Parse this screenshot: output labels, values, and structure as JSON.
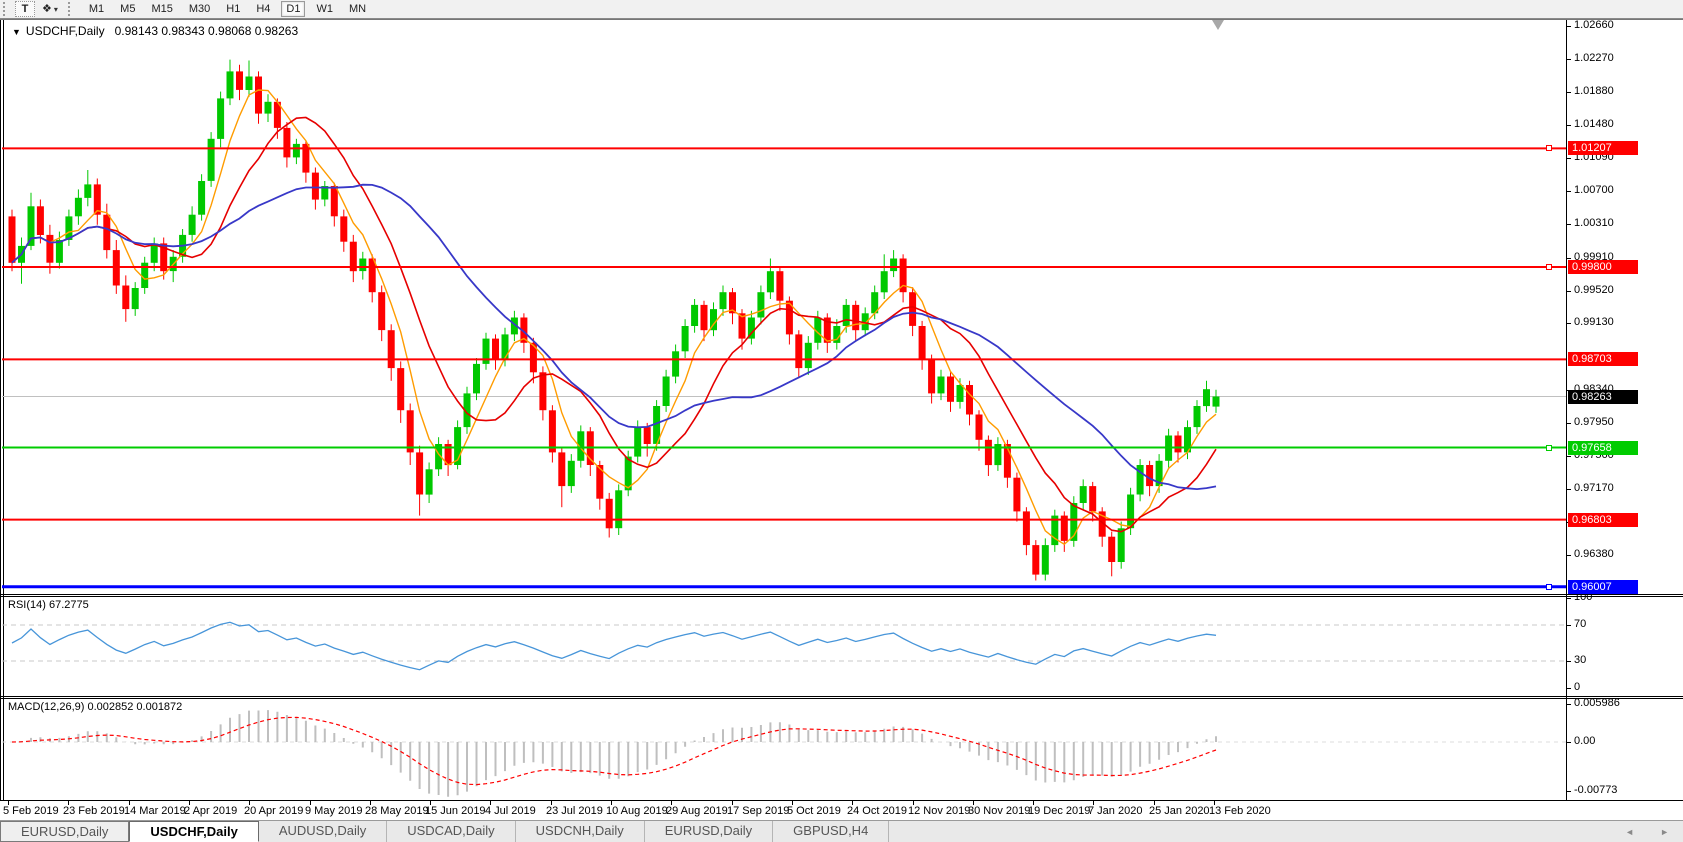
{
  "icons": {
    "dropdown_caret": "▾",
    "chart_menu": "▼",
    "shapes_tool": "❖",
    "tab_prev": "◄",
    "tab_next": "►"
  },
  "toolbar": {
    "text_tool_label": "T",
    "timeframes": [
      "M1",
      "M5",
      "M15",
      "M30",
      "H1",
      "H4",
      "D1",
      "W1",
      "MN"
    ],
    "active_timeframe": "D1"
  },
  "chart": {
    "symbol_title": "USDCHF,Daily",
    "ohlc_text": "0.98143 0.98343 0.98068 0.98263"
  },
  "chart_data": {
    "type": "candlestick",
    "symbol": "USDCHF",
    "timeframe": "Daily",
    "title_ohlc": {
      "open": "0.98143",
      "high": "0.98343",
      "low": "0.98068",
      "close": "0.98263"
    },
    "ylim": [
      0.9592,
      1.0273
    ],
    "grid": false,
    "colors": {
      "bull": "#00C800",
      "bear": "#FF0000",
      "ma_fast": "#FF9C00",
      "ma_medium": "#E60000",
      "ma_slow": "#3838C8",
      "hline_red": "#FF0000",
      "hline_green": "#00CC00",
      "hline_blue": "#0000FF",
      "bid_line": "#C0C0C0",
      "bid_box": "#000000",
      "rsi_line": "#4795D9",
      "rsi_levels": "#C8C8C8",
      "macd_hist": "#BFBFBF",
      "macd_signal": "#FF0000"
    },
    "y_ticks": [
      "1.02660",
      "1.02270",
      "1.01880",
      "1.01480",
      "1.01090",
      "1.00700",
      "1.00310",
      "0.99910",
      "0.99520",
      "0.99130",
      "0.98340",
      "0.97950",
      "0.97560",
      "0.97170",
      "0.96780",
      "0.96380"
    ],
    "x_labels": [
      "5 Feb 2019",
      "23 Feb 2019",
      "14 Mar 2019",
      "2 Apr 2019",
      "20 Apr 2019",
      "9 May 2019",
      "28 May 2019",
      "15 Jun 2019",
      "4 Jul 2019",
      "23 Jul 2019",
      "10 Aug 2019",
      "29 Aug 2019",
      "17 Sep 2019",
      "5 Oct 2019",
      "24 Oct 2019",
      "12 Nov 2019",
      "30 Nov 2019",
      "19 Dec 2019",
      "7 Jan 2020",
      "25 Jan 2020",
      "13 Feb 2020"
    ],
    "hlines": [
      {
        "price": 1.01207,
        "label": "1.01207",
        "color": "#FF0000",
        "width": 2,
        "handle": true
      },
      {
        "price": 0.998,
        "label": "0.99800",
        "color": "#FF0000",
        "width": 2,
        "handle": true
      },
      {
        "price": 0.98703,
        "label": "0.98703",
        "color": "#FF0000",
        "width": 2,
        "handle": false
      },
      {
        "price": 0.97658,
        "label": "0.97658",
        "color": "#00CC00",
        "width": 2,
        "handle": true
      },
      {
        "price": 0.96803,
        "label": "0.96803",
        "color": "#FF0000",
        "width": 2,
        "handle": false
      },
      {
        "price": 0.96007,
        "label": "0.96007",
        "color": "#0000FF",
        "width": 3,
        "handle": true
      }
    ],
    "current_price": {
      "value": 0.98263,
      "label": "0.98263"
    },
    "moving_averages": [
      {
        "name": "fast",
        "period": 5,
        "color": "#FF9C00",
        "width": 1.4
      },
      {
        "name": "medium",
        "period": 11,
        "color": "#E60000",
        "width": 1.6
      },
      {
        "name": "slow",
        "period": 25,
        "color": "#3838C8",
        "width": 1.8
      }
    ],
    "candles": [
      [
        1.004,
        1.0048,
        0.9975,
        0.9985
      ],
      [
        0.9985,
        1.0015,
        0.996,
        1.0005
      ],
      [
        1.0005,
        1.0068,
        1.0,
        1.0052
      ],
      [
        1.0052,
        1.006,
        1.0008,
        1.0018
      ],
      [
        1.0018,
        1.003,
        0.9972,
        0.9985
      ],
      [
        0.9985,
        1.0022,
        0.9978,
        1.0012
      ],
      [
        1.0012,
        1.0048,
        1.0005,
        1.004
      ],
      [
        1.004,
        1.0072,
        1.003,
        1.0062
      ],
      [
        1.0062,
        1.0095,
        1.0052,
        1.0078
      ],
      [
        1.0078,
        1.0085,
        1.003,
        1.0042
      ],
      [
        1.0042,
        1.0055,
        0.999,
        1.0
      ],
      [
        1.0,
        1.0012,
        0.9948,
        0.9958
      ],
      [
        0.9958,
        0.997,
        0.9915,
        0.993
      ],
      [
        0.993,
        0.9962,
        0.9922,
        0.9955
      ],
      [
        0.9955,
        0.9992,
        0.9948,
        0.9985
      ],
      [
        0.9985,
        1.0015,
        0.9975,
        1.0008
      ],
      [
        1.0008,
        1.0015,
        0.9965,
        0.9975
      ],
      [
        0.9975,
        1.0,
        0.9962,
        0.9992
      ],
      [
        0.9992,
        1.0025,
        0.9985,
        1.0018
      ],
      [
        1.0018,
        1.0052,
        1.001,
        1.0042
      ],
      [
        1.0042,
        1.009,
        1.0035,
        1.0082
      ],
      [
        1.0082,
        1.014,
        1.0075,
        1.0132
      ],
      [
        1.0132,
        1.0188,
        1.0122,
        1.018
      ],
      [
        1.018,
        1.0226,
        1.0172,
        1.0212
      ],
      [
        1.0212,
        1.022,
        1.0178,
        1.019
      ],
      [
        1.019,
        1.0225,
        1.0182,
        1.0206
      ],
      [
        1.0206,
        1.0212,
        1.015,
        1.0162
      ],
      [
        1.0162,
        1.0185,
        1.0152,
        1.0176
      ],
      [
        1.0176,
        1.018,
        1.0132,
        1.0145
      ],
      [
        1.0145,
        1.0152,
        1.0098,
        1.011
      ],
      [
        1.011,
        1.0132,
        1.0102,
        1.0126
      ],
      [
        1.0126,
        1.013,
        1.008,
        1.0092
      ],
      [
        1.0092,
        1.0098,
        1.0048,
        1.006
      ],
      [
        1.006,
        1.0082,
        1.0052,
        1.0076
      ],
      [
        1.0076,
        1.008,
        1.0028,
        1.004
      ],
      [
        1.004,
        1.0048,
        0.9998,
        1.001
      ],
      [
        1.001,
        1.0018,
        0.9962,
        0.9975
      ],
      [
        0.9975,
        0.9998,
        0.9965,
        0.999
      ],
      [
        0.999,
        0.9995,
        0.9938,
        0.995
      ],
      [
        0.995,
        0.9958,
        0.9892,
        0.9905
      ],
      [
        0.9905,
        0.9912,
        0.9845,
        0.986
      ],
      [
        0.986,
        0.9868,
        0.9795,
        0.981
      ],
      [
        0.981,
        0.9818,
        0.9745,
        0.976
      ],
      [
        0.976,
        0.9768,
        0.9685,
        0.971
      ],
      [
        0.971,
        0.9748,
        0.97,
        0.974
      ],
      [
        0.974,
        0.9778,
        0.9732,
        0.977
      ],
      [
        0.977,
        0.9775,
        0.9732,
        0.9745
      ],
      [
        0.9745,
        0.9798,
        0.974,
        0.979
      ],
      [
        0.979,
        0.9838,
        0.9782,
        0.983
      ],
      [
        0.983,
        0.9872,
        0.9822,
        0.9865
      ],
      [
        0.9865,
        0.9902,
        0.9858,
        0.9895
      ],
      [
        0.9895,
        0.99,
        0.9858,
        0.987
      ],
      [
        0.987,
        0.9908,
        0.9862,
        0.99
      ],
      [
        0.99,
        0.9928,
        0.9892,
        0.992
      ],
      [
        0.992,
        0.9925,
        0.9878,
        0.989
      ],
      [
        0.989,
        0.9896,
        0.9842,
        0.9855
      ],
      [
        0.9855,
        0.9862,
        0.9798,
        0.981
      ],
      [
        0.981,
        0.9816,
        0.9748,
        0.976
      ],
      [
        0.976,
        0.9766,
        0.9695,
        0.972
      ],
      [
        0.972,
        0.9758,
        0.9712,
        0.975
      ],
      [
        0.975,
        0.9792,
        0.9742,
        0.9785
      ],
      [
        0.9785,
        0.979,
        0.9732,
        0.9745
      ],
      [
        0.9745,
        0.975,
        0.9692,
        0.9705
      ],
      [
        0.9705,
        0.9712,
        0.9659,
        0.967
      ],
      [
        0.967,
        0.9722,
        0.9662,
        0.9715
      ],
      [
        0.9715,
        0.9762,
        0.9708,
        0.9755
      ],
      [
        0.9755,
        0.9798,
        0.9748,
        0.979
      ],
      [
        0.979,
        0.9795,
        0.9755,
        0.977
      ],
      [
        0.977,
        0.9822,
        0.9762,
        0.9815
      ],
      [
        0.9815,
        0.9858,
        0.9808,
        0.985
      ],
      [
        0.985,
        0.9888,
        0.9842,
        0.988
      ],
      [
        0.988,
        0.9918,
        0.9872,
        0.991
      ],
      [
        0.991,
        0.9942,
        0.9902,
        0.9935
      ],
      [
        0.9935,
        0.994,
        0.9892,
        0.9905
      ],
      [
        0.9905,
        0.9938,
        0.9898,
        0.993
      ],
      [
        0.993,
        0.9958,
        0.9922,
        0.995
      ],
      [
        0.995,
        0.9955,
        0.9912,
        0.9925
      ],
      [
        0.9925,
        0.993,
        0.9882,
        0.9895
      ],
      [
        0.9895,
        0.9928,
        0.9888,
        0.992
      ],
      [
        0.992,
        0.9958,
        0.9912,
        0.995
      ],
      [
        0.995,
        0.999,
        0.9942,
        0.9975
      ],
      [
        0.9975,
        0.998,
        0.9928,
        0.994
      ],
      [
        0.994,
        0.9945,
        0.9888,
        0.99
      ],
      [
        0.99,
        0.9905,
        0.9848,
        0.986
      ],
      [
        0.986,
        0.9898,
        0.9852,
        0.989
      ],
      [
        0.989,
        0.9928,
        0.9882,
        0.992
      ],
      [
        0.992,
        0.9925,
        0.9878,
        0.989
      ],
      [
        0.989,
        0.9918,
        0.9882,
        0.991
      ],
      [
        0.991,
        0.9942,
        0.9902,
        0.9935
      ],
      [
        0.9935,
        0.994,
        0.9892,
        0.9905
      ],
      [
        0.9905,
        0.9932,
        0.9898,
        0.9925
      ],
      [
        0.9925,
        0.9958,
        0.9918,
        0.995
      ],
      [
        0.995,
        0.9995,
        0.9942,
        0.9975
      ],
      [
        0.9975,
        1.0,
        0.9968,
        0.999
      ],
      [
        0.999,
        0.9995,
        0.9938,
        0.995
      ],
      [
        0.995,
        0.9956,
        0.9898,
        0.991
      ],
      [
        0.991,
        0.9916,
        0.9858,
        0.987
      ],
      [
        0.987,
        0.9876,
        0.9818,
        0.983
      ],
      [
        0.983,
        0.9858,
        0.9822,
        0.985
      ],
      [
        0.985,
        0.9855,
        0.9808,
        0.982
      ],
      [
        0.982,
        0.9848,
        0.9812,
        0.984
      ],
      [
        0.984,
        0.9845,
        0.9792,
        0.9805
      ],
      [
        0.9805,
        0.981,
        0.9762,
        0.9775
      ],
      [
        0.9775,
        0.978,
        0.9732,
        0.9745
      ],
      [
        0.9745,
        0.9778,
        0.9738,
        0.977
      ],
      [
        0.977,
        0.9775,
        0.9718,
        0.973
      ],
      [
        0.973,
        0.9736,
        0.9678,
        0.969
      ],
      [
        0.969,
        0.9695,
        0.9638,
        0.965
      ],
      [
        0.965,
        0.9656,
        0.9608,
        0.9615
      ],
      [
        0.9615,
        0.9658,
        0.9608,
        0.965
      ],
      [
        0.965,
        0.9692,
        0.9642,
        0.9685
      ],
      [
        0.9685,
        0.969,
        0.9642,
        0.9655
      ],
      [
        0.9655,
        0.9708,
        0.9648,
        0.97
      ],
      [
        0.97,
        0.9728,
        0.9692,
        0.972
      ],
      [
        0.972,
        0.9725,
        0.9678,
        0.969
      ],
      [
        0.969,
        0.9695,
        0.9648,
        0.966
      ],
      [
        0.966,
        0.9666,
        0.9613,
        0.963
      ],
      [
        0.963,
        0.9678,
        0.9622,
        0.967
      ],
      [
        0.967,
        0.9718,
        0.9662,
        0.971
      ],
      [
        0.971,
        0.9752,
        0.9702,
        0.9745
      ],
      [
        0.9745,
        0.975,
        0.9708,
        0.972
      ],
      [
        0.972,
        0.9758,
        0.9712,
        0.975
      ],
      [
        0.975,
        0.9788,
        0.9742,
        0.978
      ],
      [
        0.978,
        0.9785,
        0.9748,
        0.976
      ],
      [
        0.976,
        0.9798,
        0.9752,
        0.979
      ],
      [
        0.979,
        0.9822,
        0.9782,
        0.9815
      ],
      [
        0.9815,
        0.9845,
        0.9808,
        0.9835
      ],
      [
        0.98143,
        0.98343,
        0.98068,
        0.98263
      ]
    ],
    "rsi": {
      "label": "RSI(14) 67.2775",
      "period": 14,
      "current_value": "67.2775",
      "levels": [
        100,
        70,
        30,
        0
      ],
      "level_labels": [
        "100",
        "70",
        "30",
        "0"
      ],
      "dashed_levels": [
        70,
        30
      ],
      "ylim": [
        0,
        100
      ]
    },
    "macd": {
      "label": "MACD(12,26,9) 0.002852 0.001872",
      "params": "12,26,9",
      "current_macd": "0.002852",
      "current_signal": "0.001872",
      "y_tick_labels": [
        "0.005986",
        "0.00",
        "-0.00773"
      ],
      "y_tick_values": [
        0.005986,
        0,
        -0.00773
      ]
    }
  },
  "tabbar": {
    "tabs": [
      {
        "label": "EURUSD,Daily",
        "active": false
      },
      {
        "label": "USDCHF,Daily",
        "active": true
      },
      {
        "label": "AUDUSD,Daily",
        "active": false
      },
      {
        "label": "USDCAD,Daily",
        "active": false
      },
      {
        "label": "USDCNH,Daily",
        "active": false
      },
      {
        "label": "EURUSD,Daily",
        "active": false
      },
      {
        "label": "GBPUSD,H4",
        "active": false
      }
    ]
  }
}
